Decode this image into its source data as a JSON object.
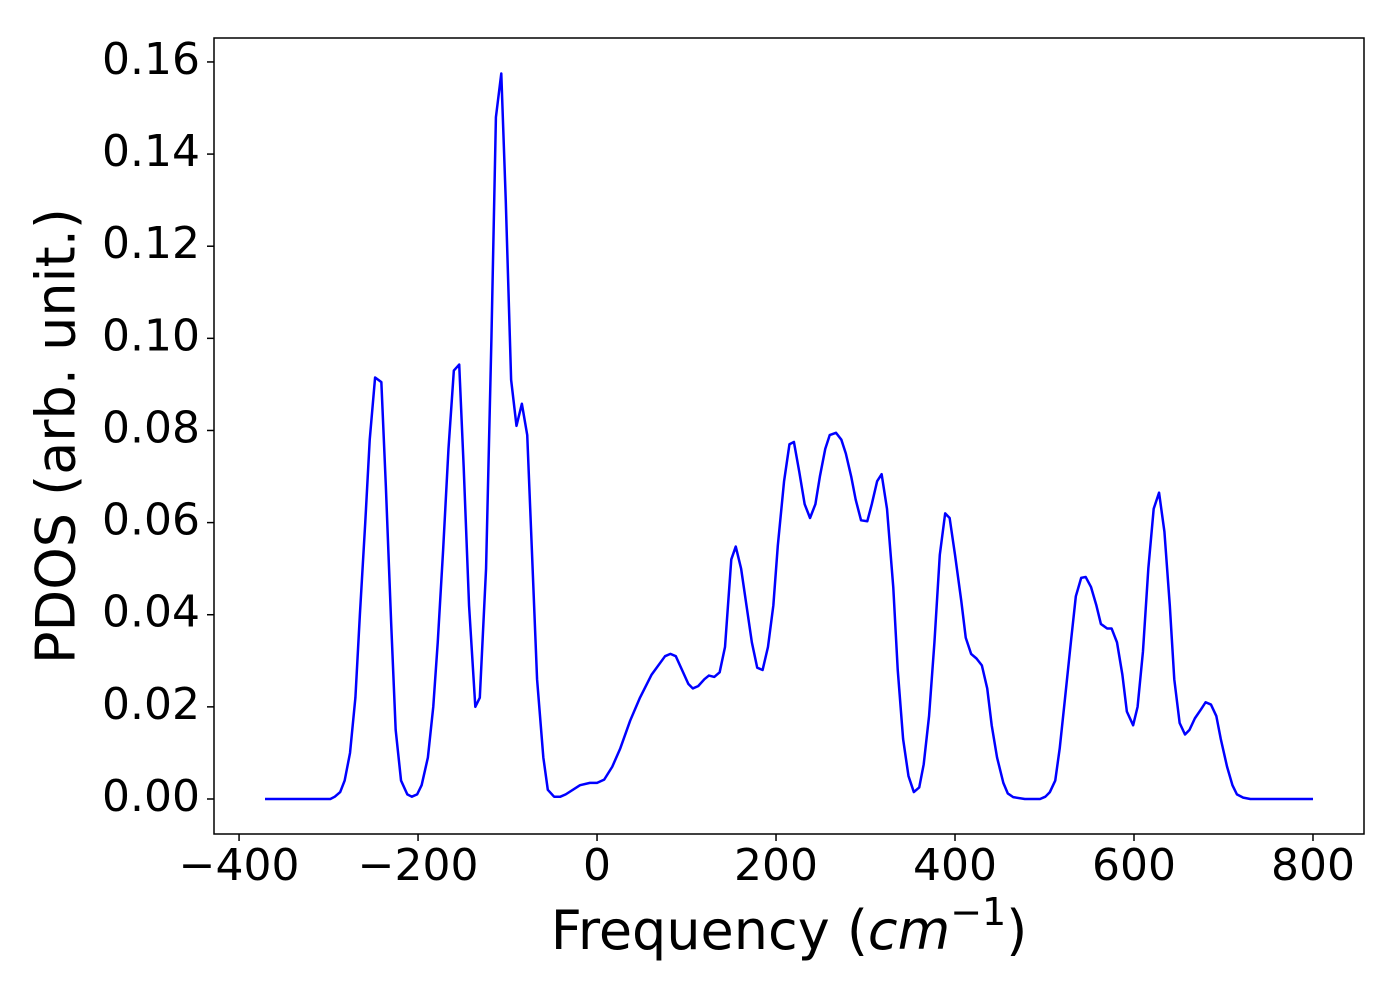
{
  "chart_data": {
    "type": "line",
    "ylabel": "PDOS (arb. unit.)",
    "xlabel_parts": [
      "Frequency (",
      "cm",
      "−1",
      ")"
    ],
    "color": "#0000ff",
    "x": [
      -371,
      -298,
      -293,
      -287,
      -282,
      -276,
      -270,
      -265,
      -259,
      -254,
      -248,
      -241,
      -236,
      -230,
      -225,
      -219,
      -212,
      -207,
      -201,
      -196,
      -189,
      -183,
      -178,
      -172,
      -166,
      -160,
      -154,
      -149,
      -143,
      -136,
      -131,
      -124,
      -118,
      -113,
      -107,
      -102,
      -96,
      -90,
      -84,
      -78,
      -73,
      -67,
      -60,
      -55,
      -48,
      -41,
      -35,
      -19,
      -8,
      0,
      8,
      17,
      26,
      37,
      48,
      61,
      76,
      82,
      88,
      95,
      102,
      107,
      113,
      120,
      125,
      131,
      137,
      143,
      150,
      155,
      161,
      167,
      173,
      179,
      185,
      191,
      197,
      202,
      209,
      215,
      220,
      226,
      232,
      238,
      244,
      249,
      255,
      260,
      267,
      273,
      278,
      284,
      289,
      295,
      302,
      307,
      313,
      318,
      324,
      331,
      336,
      342,
      348,
      354,
      360,
      365,
      371,
      377,
      383,
      389,
      394,
      400,
      407,
      412,
      418,
      424,
      430,
      436,
      441,
      447,
      454,
      459,
      465,
      478,
      495,
      501,
      506,
      512,
      517,
      523,
      530,
      535,
      541,
      546,
      552,
      558,
      563,
      570,
      575,
      581,
      587,
      592,
      599,
      604,
      610,
      616,
      622,
      628,
      634,
      640,
      645,
      651,
      657,
      662,
      668,
      675,
      680,
      686,
      692,
      697,
      704,
      710,
      715,
      722,
      730,
      800
    ],
    "values": [
      0,
      0,
      0.0005,
      0.0015,
      0.004,
      0.01,
      0.022,
      0.04,
      0.06,
      0.078,
      0.0915,
      0.0905,
      0.068,
      0.038,
      0.015,
      0.004,
      0.001,
      0.0005,
      0.001,
      0.003,
      0.009,
      0.02,
      0.034,
      0.054,
      0.076,
      0.093,
      0.0943,
      0.072,
      0.042,
      0.02,
      0.022,
      0.05,
      0.1,
      0.148,
      0.1575,
      0.13,
      0.091,
      0.081,
      0.0858,
      0.079,
      0.055,
      0.026,
      0.009,
      0.002,
      0.0005,
      0.0005,
      0.001,
      0.003,
      0.0035,
      0.0035,
      0.0042,
      0.007,
      0.011,
      0.017,
      0.022,
      0.027,
      0.031,
      0.0315,
      0.031,
      0.028,
      0.025,
      0.024,
      0.0245,
      0.026,
      0.0268,
      0.0265,
      0.0275,
      0.033,
      0.052,
      0.0548,
      0.05,
      0.042,
      0.034,
      0.0285,
      0.028,
      0.033,
      0.042,
      0.055,
      0.069,
      0.077,
      0.0775,
      0.071,
      0.064,
      0.061,
      0.064,
      0.07,
      0.076,
      0.079,
      0.0795,
      0.078,
      0.075,
      0.07,
      0.065,
      0.0605,
      0.0603,
      0.064,
      0.069,
      0.0705,
      0.063,
      0.046,
      0.028,
      0.013,
      0.005,
      0.0015,
      0.0025,
      0.0075,
      0.018,
      0.034,
      0.053,
      0.062,
      0.061,
      0.053,
      0.043,
      0.035,
      0.0315,
      0.0305,
      0.029,
      0.024,
      0.016,
      0.009,
      0.0035,
      0.0012,
      0.0004,
      0,
      0,
      0.0005,
      0.0015,
      0.004,
      0.011,
      0.022,
      0.035,
      0.044,
      0.048,
      0.0482,
      0.046,
      0.042,
      0.038,
      0.037,
      0.037,
      0.034,
      0.027,
      0.019,
      0.016,
      0.02,
      0.032,
      0.05,
      0.063,
      0.0665,
      0.058,
      0.042,
      0.026,
      0.0165,
      0.014,
      0.015,
      0.0175,
      0.0195,
      0.021,
      0.0205,
      0.018,
      0.013,
      0.007,
      0.003,
      0.001,
      0.0003,
      0,
      0
    ],
    "xlim": [
      -428,
      857
    ],
    "ylim": [
      -0.0076,
      0.1652
    ],
    "xticks": [
      {
        "value": -400,
        "label": "−400"
      },
      {
        "value": -200,
        "label": "−200"
      },
      0,
      200,
      400,
      600,
      800
    ],
    "yticks": [
      {
        "value": 0,
        "label": "0.00"
      },
      {
        "value": 0.02,
        "label": "0.02"
      },
      {
        "value": 0.04,
        "label": "0.04"
      },
      {
        "value": 0.06,
        "label": "0.06"
      },
      {
        "value": 0.08,
        "label": "0.08"
      },
      {
        "value": 0.1,
        "label": "0.10"
      },
      {
        "value": 0.12,
        "label": "0.12"
      },
      {
        "value": 0.14,
        "label": "0.14"
      },
      {
        "value": 0.16,
        "label": "0.16"
      }
    ]
  }
}
